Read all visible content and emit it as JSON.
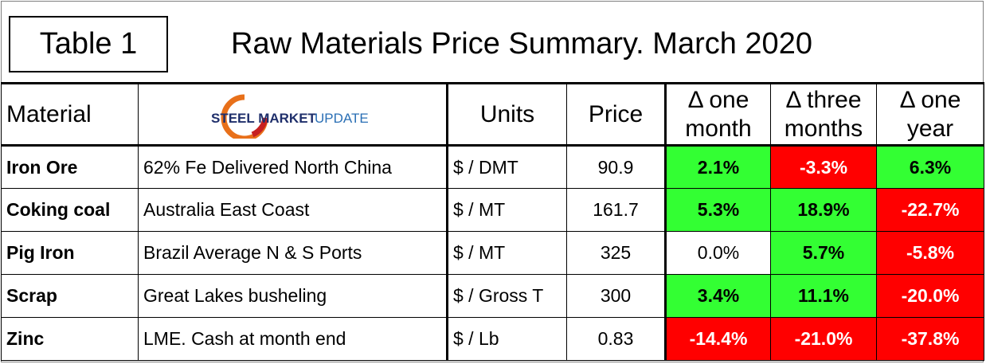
{
  "header": {
    "tag": "Table 1",
    "title": "Raw Materials Price Summary. March 2020"
  },
  "logo": {
    "text_bold": "STEEL MARKET",
    "text_light": "UPDATE"
  },
  "columns": {
    "material": "Material",
    "units": "Units",
    "price": "Price",
    "chg1_line1": "Δ one",
    "chg1_line2": "month",
    "chg3_line1": "Δ three",
    "chg3_line2": "months",
    "chg12_line1": "Δ one",
    "chg12_line2": "year"
  },
  "colors": {
    "positive": "#33ff33",
    "negative": "#ff0000",
    "neutral": "#ffffff"
  },
  "rows": [
    {
      "material": "Iron Ore",
      "location": "62% Fe Delivered North China",
      "units": "$ / DMT",
      "price": "90.9",
      "chg_1m": "2.1%",
      "chg_1m_status": "positive",
      "chg_3m": "-3.3%",
      "chg_3m_status": "negative",
      "chg_1y": "6.3%",
      "chg_1y_status": "positive"
    },
    {
      "material": "Coking coal",
      "location": "Australia East Coast",
      "units": "$ / MT",
      "price": "161.7",
      "chg_1m": "5.3%",
      "chg_1m_status": "positive",
      "chg_3m": "18.9%",
      "chg_3m_status": "positive",
      "chg_1y": "-22.7%",
      "chg_1y_status": "negative"
    },
    {
      "material": "Pig Iron",
      "location": "Brazil Average N & S Ports",
      "units": "$ / MT",
      "price": "325",
      "chg_1m": "0.0%",
      "chg_1m_status": "neutral",
      "chg_3m": "5.7%",
      "chg_3m_status": "positive",
      "chg_1y": "-5.8%",
      "chg_1y_status": "negative"
    },
    {
      "material": "Scrap",
      "location": "Great Lakes busheling",
      "units": "$ / Gross T",
      "price": "300",
      "chg_1m": "3.4%",
      "chg_1m_status": "positive",
      "chg_3m": "11.1%",
      "chg_3m_status": "positive",
      "chg_1y": "-20.0%",
      "chg_1y_status": "negative"
    },
    {
      "material": "Zinc",
      "location": "LME. Cash at month end",
      "units": "$ / Lb",
      "price": "0.83",
      "chg_1m": "-14.4%",
      "chg_1m_status": "negative",
      "chg_3m": "-21.0%",
      "chg_3m_status": "negative",
      "chg_1y": "-37.8%",
      "chg_1y_status": "negative"
    }
  ]
}
